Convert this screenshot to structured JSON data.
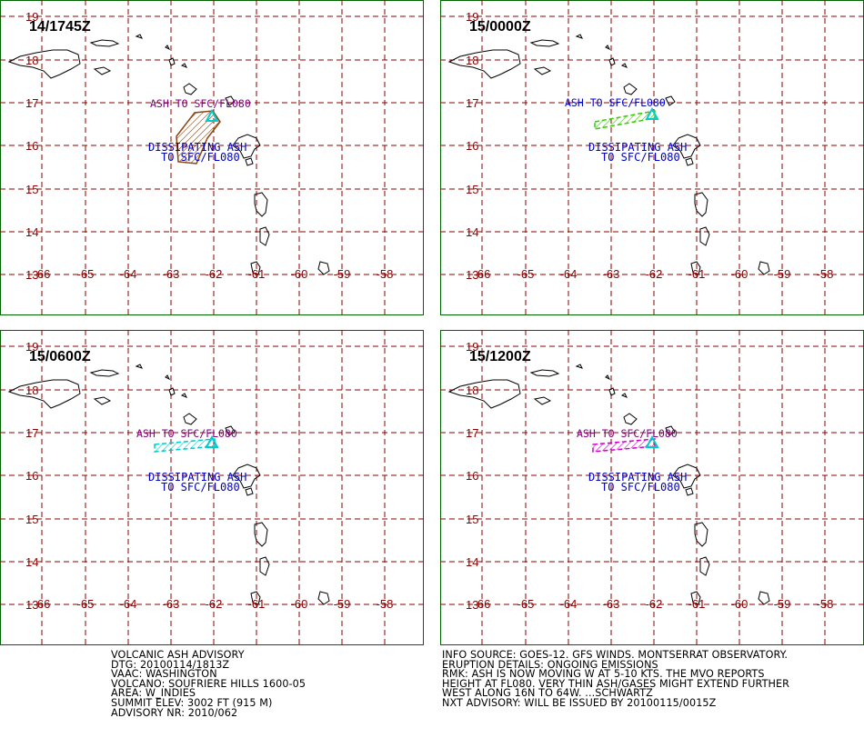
{
  "panels": [
    {
      "time": "14/1745Z",
      "ash_label": "ASH TO SFC/FL080",
      "ash_label_color": "#800080",
      "dissipating_1": "DISSIPATING ASH",
      "dissipating_2": "TO SFC/FL080",
      "cloud_style": "hatched-polygon",
      "cloud_color": "#8b4513"
    },
    {
      "time": "15/0000Z",
      "ash_label": "ASH TO SFC/FL080",
      "ash_label_color": "#0000c0",
      "dissipating_1": "DISSIPATING ASH",
      "dissipating_2": "TO SFC/FL080",
      "cloud_style": "hatched-band",
      "cloud_color": "#33cc00"
    },
    {
      "time": "15/0600Z",
      "ash_label": "ASH TO SFC/FL080",
      "ash_label_color": "#800080",
      "dissipating_1": "DISSIPATING ASH",
      "dissipating_2": "TO SFC/FL080",
      "cloud_style": "hatched-band",
      "cloud_color": "#00cccc"
    },
    {
      "time": "15/1200Z",
      "ash_label": "ASH TO SFC/FL080",
      "ash_label_color": "#800080",
      "dissipating_1": "DISSIPATING ASH",
      "dissipating_2": "TO SFC/FL080",
      "cloud_style": "hatched-band",
      "cloud_color": "#cc00cc"
    }
  ],
  "map": {
    "lat_labels": [
      "19",
      "18",
      "17",
      "16",
      "15",
      "14",
      "13"
    ],
    "lon_labels": [
      "-66",
      "-65",
      "-64",
      "-63",
      "-62",
      "-61",
      "-60",
      "-59",
      "-58"
    ],
    "grid_color": "#8b0000",
    "dissipating_color": "#0000c0",
    "volcano_color": "#00cccc"
  },
  "advisory_left": [
    "VOLCANIC ASH ADVISORY",
    "DTG: 20100114/1813Z",
    "VAAC: WASHINGTON",
    "VOLCANO: SOUFRIERE HILLS 1600-05",
    "AREA: W_INDIES",
    "SUMMIT ELEV: 3002 FT (915 M)",
    "ADVISORY NR: 2010/062"
  ],
  "advisory_right": [
    "INFO SOURCE: GOES-12. GFS WINDS. MONTSERRAT OBSERVATORY.",
    "ERUPTION DETAILS: ONGOING EMISSIONS",
    "RMK: ASH IS NOW MOVING W AT 5-10 KTS. THE MVO REPORTS",
    "HEIGHT AT FL080. VERY THIN ASH/GASES MIGHT EXTEND FURTHER",
    "WEST ALONG 16N TO 64W.  ...SCHWARTZ",
    "NXT ADVISORY: WILL BE ISSUED BY 20100115/0015Z"
  ]
}
